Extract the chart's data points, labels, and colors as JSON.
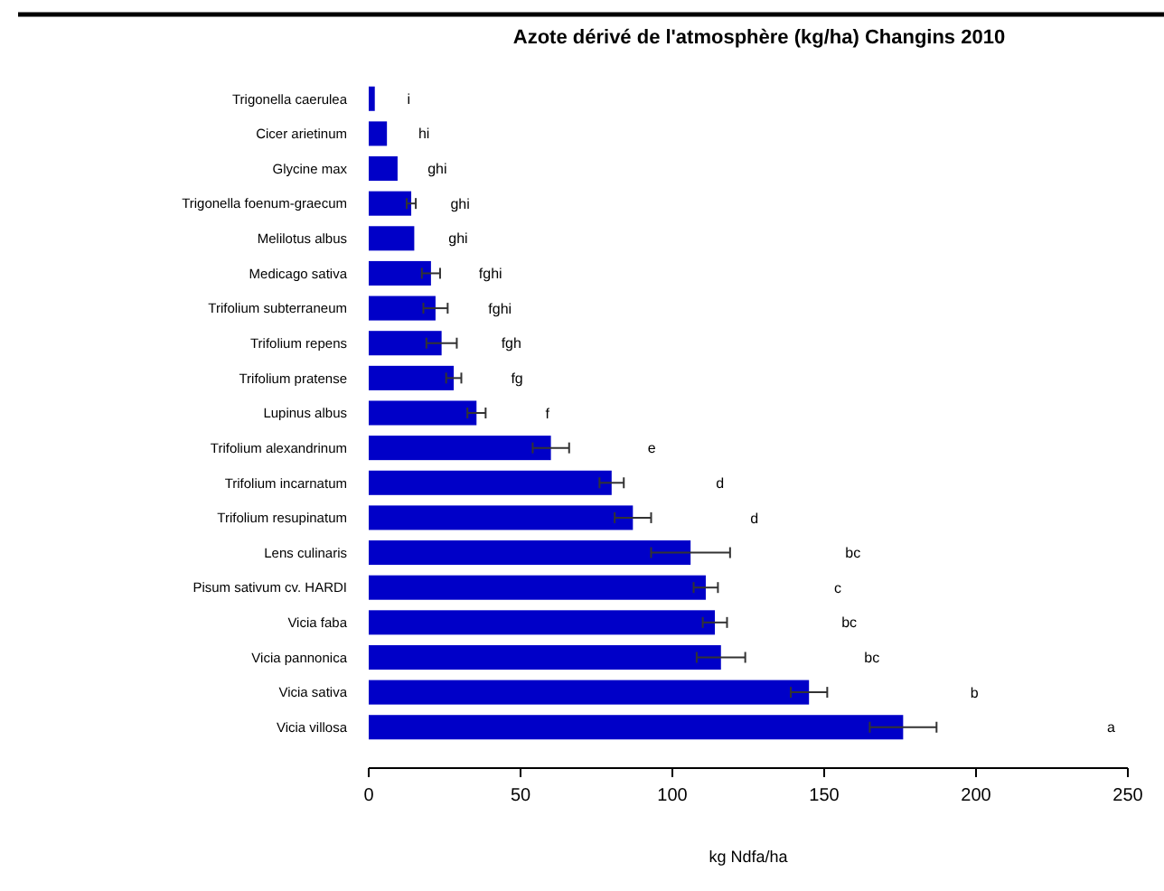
{
  "chart_data": {
    "type": "bar",
    "orientation": "horizontal",
    "title": "Azote dérivé de l'atmosphère (kg/ha) Changins 2010",
    "xlabel": "kg Ndfa/ha",
    "categories": [
      "Trigonella caerulea",
      "Cicer arietinum",
      "Glycine max",
      "Trigonella foenum-graecum",
      "Melilotus albus",
      "Medicago sativa",
      "Trifolium subterraneum",
      "Trifolium repens",
      "Trifolium pratense",
      "Lupinus albus",
      "Trifolium alexandrinum",
      "Trifolium incarnatum",
      "Trifolium resupinatum",
      "Lens culinaris",
      "Pisum sativum cv. HARDI",
      "Vicia faba",
      "Vicia pannonica",
      "Vicia sativa",
      "Vicia villosa"
    ],
    "values": [
      2,
      6,
      9.5,
      14,
      15,
      20.5,
      22,
      24,
      28,
      35.5,
      60,
      80,
      87,
      106,
      111,
      114,
      116,
      145,
      176
    ],
    "errors": [
      null,
      null,
      null,
      1.5,
      null,
      3,
      4,
      5,
      2.5,
      3,
      6,
      4,
      6,
      13,
      4,
      4,
      8,
      6,
      11
    ],
    "color": "#0000c8",
    "xlim": [
      0,
      250
    ],
    "xticks": [
      0,
      50,
      100,
      150,
      200,
      250
    ],
    "annotations": [
      "i",
      "hi",
      "ghi",
      "ghi",
      "ghi",
      "fghi",
      "fghi",
      "fgh",
      "fg",
      "f",
      "e",
      "d",
      "d",
      "bc",
      "c",
      "bc",
      "bc",
      "b",
      "a"
    ]
  }
}
